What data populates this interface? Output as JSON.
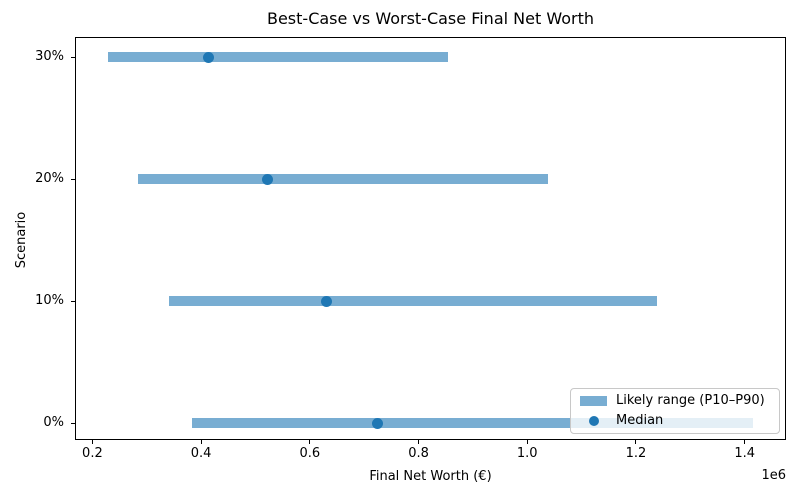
{
  "chart_data": {
    "type": "bar",
    "subtype": "horizontal-range-dot",
    "title": "Best-Case vs Worst-Case Final Net Worth",
    "xlabel": "Final Net Worth (€)",
    "ylabel": "Scenario",
    "x_scale_offset": "1e6",
    "xlim": [
      168000,
      1476000
    ],
    "xticks": [
      200000,
      400000,
      600000,
      800000,
      1000000,
      1200000,
      1400000
    ],
    "xtick_labels": [
      "0.2",
      "0.4",
      "0.6",
      "0.8",
      "1.0",
      "1.2",
      "1.4"
    ],
    "categories": [
      "30%",
      "20%",
      "10%",
      "0%"
    ],
    "rows": [
      {
        "scenario": "30%",
        "p10": 228000,
        "median": 413000,
        "p90": 855000
      },
      {
        "scenario": "20%",
        "p10": 284000,
        "median": 522000,
        "p90": 1038000
      },
      {
        "scenario": "10%",
        "p10": 341000,
        "median": 631000,
        "p90": 1238000
      },
      {
        "scenario": "0%",
        "p10": 383000,
        "median": 725000,
        "p90": 1415000
      }
    ],
    "legend": {
      "position": "lower right",
      "items": [
        {
          "label": "Likely range (P10–P90)",
          "marker": "bar"
        },
        {
          "label": "Median",
          "marker": "dot"
        }
      ]
    },
    "colors": {
      "range_bar": "#78add2",
      "median_dot": "#1f77b4",
      "spine": "#000000",
      "text": "#000000",
      "legend_border": "#c8c8c8",
      "background": "#ffffff"
    },
    "grid": false
  }
}
